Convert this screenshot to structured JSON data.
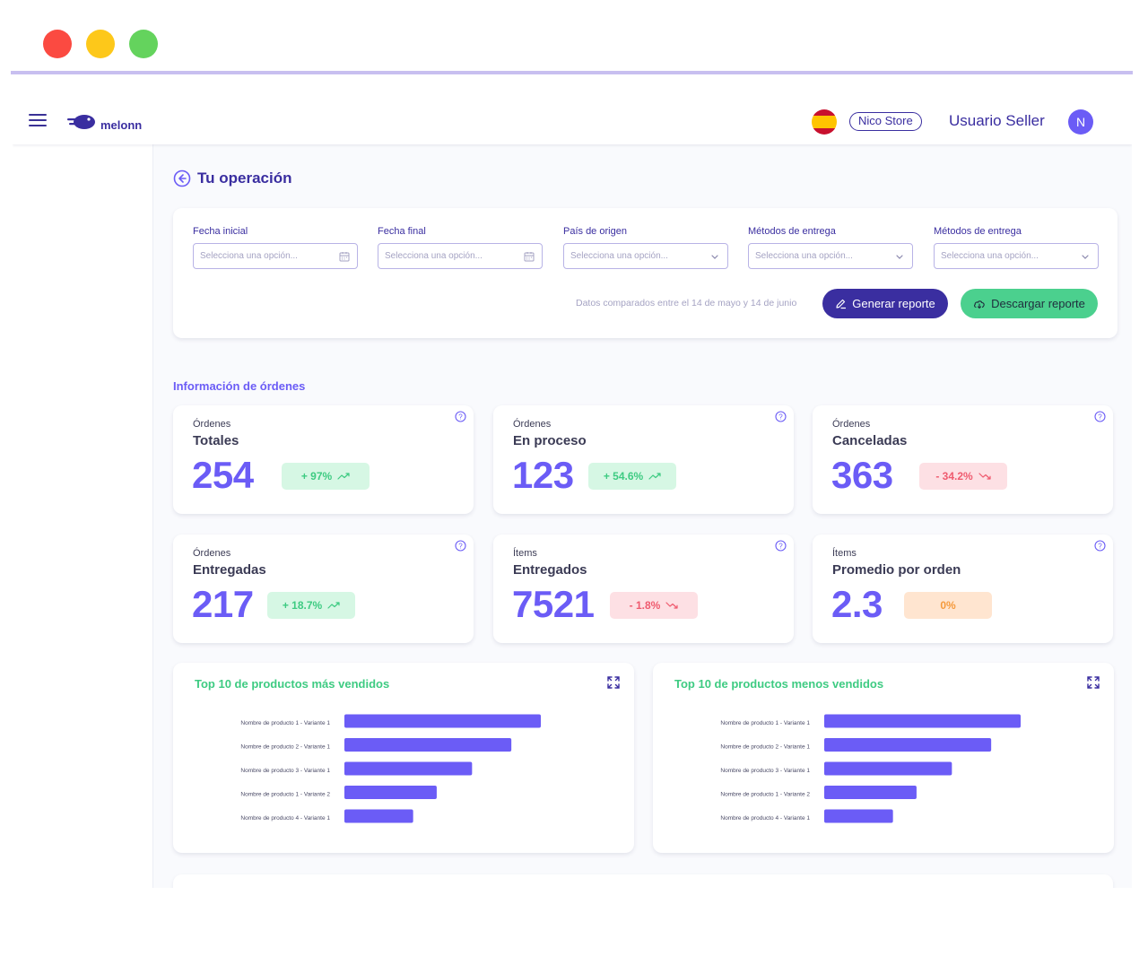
{
  "window": {
    "colors": {
      "close": "#fb4a41",
      "minimize": "#fdc81a",
      "maximize": "#64d35d"
    }
  },
  "topbar": {
    "logo_text": "melonn",
    "flag": "spain-flag",
    "store": "Nico Store",
    "user": "Usuario Seller",
    "avatar_initial": "N"
  },
  "page": {
    "title": "Tu operación"
  },
  "filters": {
    "fields": [
      {
        "label": "Fecha inicial",
        "placeholder": "Selecciona una opción...",
        "icon": "calendar-icon"
      },
      {
        "label": "Fecha final",
        "placeholder": "Selecciona una opción...",
        "icon": "calendar-icon"
      },
      {
        "label": "País de origen",
        "placeholder": "Selecciona una opción...",
        "icon": "chevron-down-icon"
      },
      {
        "label": "Métodos de entrega",
        "placeholder": "Selecciona una opción...",
        "icon": "chevron-down-icon"
      },
      {
        "label": "Métodos de entrega",
        "placeholder": "Selecciona una opción...",
        "icon": "chevron-down-icon"
      }
    ],
    "compare_note": "Datos comparados entre el 14 de mayo y 14 de junio",
    "generate_label": "Generar reporte",
    "download_label": "Descargar reporte"
  },
  "orders_section": {
    "title": "Información de órdenes",
    "metrics": [
      {
        "top": "Órdenes",
        "label": "Totales",
        "value": "254",
        "change": "+ 97%",
        "trend": "up"
      },
      {
        "top": "Órdenes",
        "label": "En proceso",
        "value": "123",
        "change": "+ 54.6%",
        "trend": "up"
      },
      {
        "top": "Órdenes",
        "label": "Canceladas",
        "value": "363",
        "change": "- 34.2%",
        "trend": "down"
      },
      {
        "top": "Órdenes",
        "label": "Entregadas",
        "value": "217",
        "change": "+ 18.7%",
        "trend": "up"
      },
      {
        "top": "Ítems",
        "label": "Entregados",
        "value": "7521",
        "change": "- 1.8%",
        "trend": "down"
      },
      {
        "top": "Ítems",
        "label": "Promedio por orden",
        "value": "2.3",
        "change": "0%",
        "trend": "neutral"
      }
    ]
  },
  "charts": [
    {
      "title": "Top 10 de productos más vendidos"
    },
    {
      "title": "Top 10 de productos menos vendidos"
    }
  ],
  "chart_data": [
    {
      "type": "bar",
      "orientation": "horizontal",
      "title": "Top 10 de productos más vendidos",
      "categories": [
        "Nombre de producto 1 - Variante 1",
        "Nombre de producto 2 - Variante 1",
        "Nombre de producto 3 - Variante 1",
        "Nombre de producto 1 - Variante 2",
        "Nombre de producto 4 - Variante 1"
      ],
      "values": [
        100,
        85,
        65,
        47,
        35
      ],
      "color": "#6b5cf6",
      "grid": false
    },
    {
      "type": "bar",
      "orientation": "horizontal",
      "title": "Top 10 de productos menos vendidos",
      "categories": [
        "Nombre de producto 1 - Variante 1",
        "Nombre de producto 2 - Variante 1",
        "Nombre de producto 3 - Variante 1",
        "Nombre de producto 1 - Variante 2",
        "Nombre de producto 4 - Variante 1"
      ],
      "values": [
        100,
        85,
        65,
        47,
        35
      ],
      "color": "#6b5cf6",
      "grid": false
    }
  ]
}
